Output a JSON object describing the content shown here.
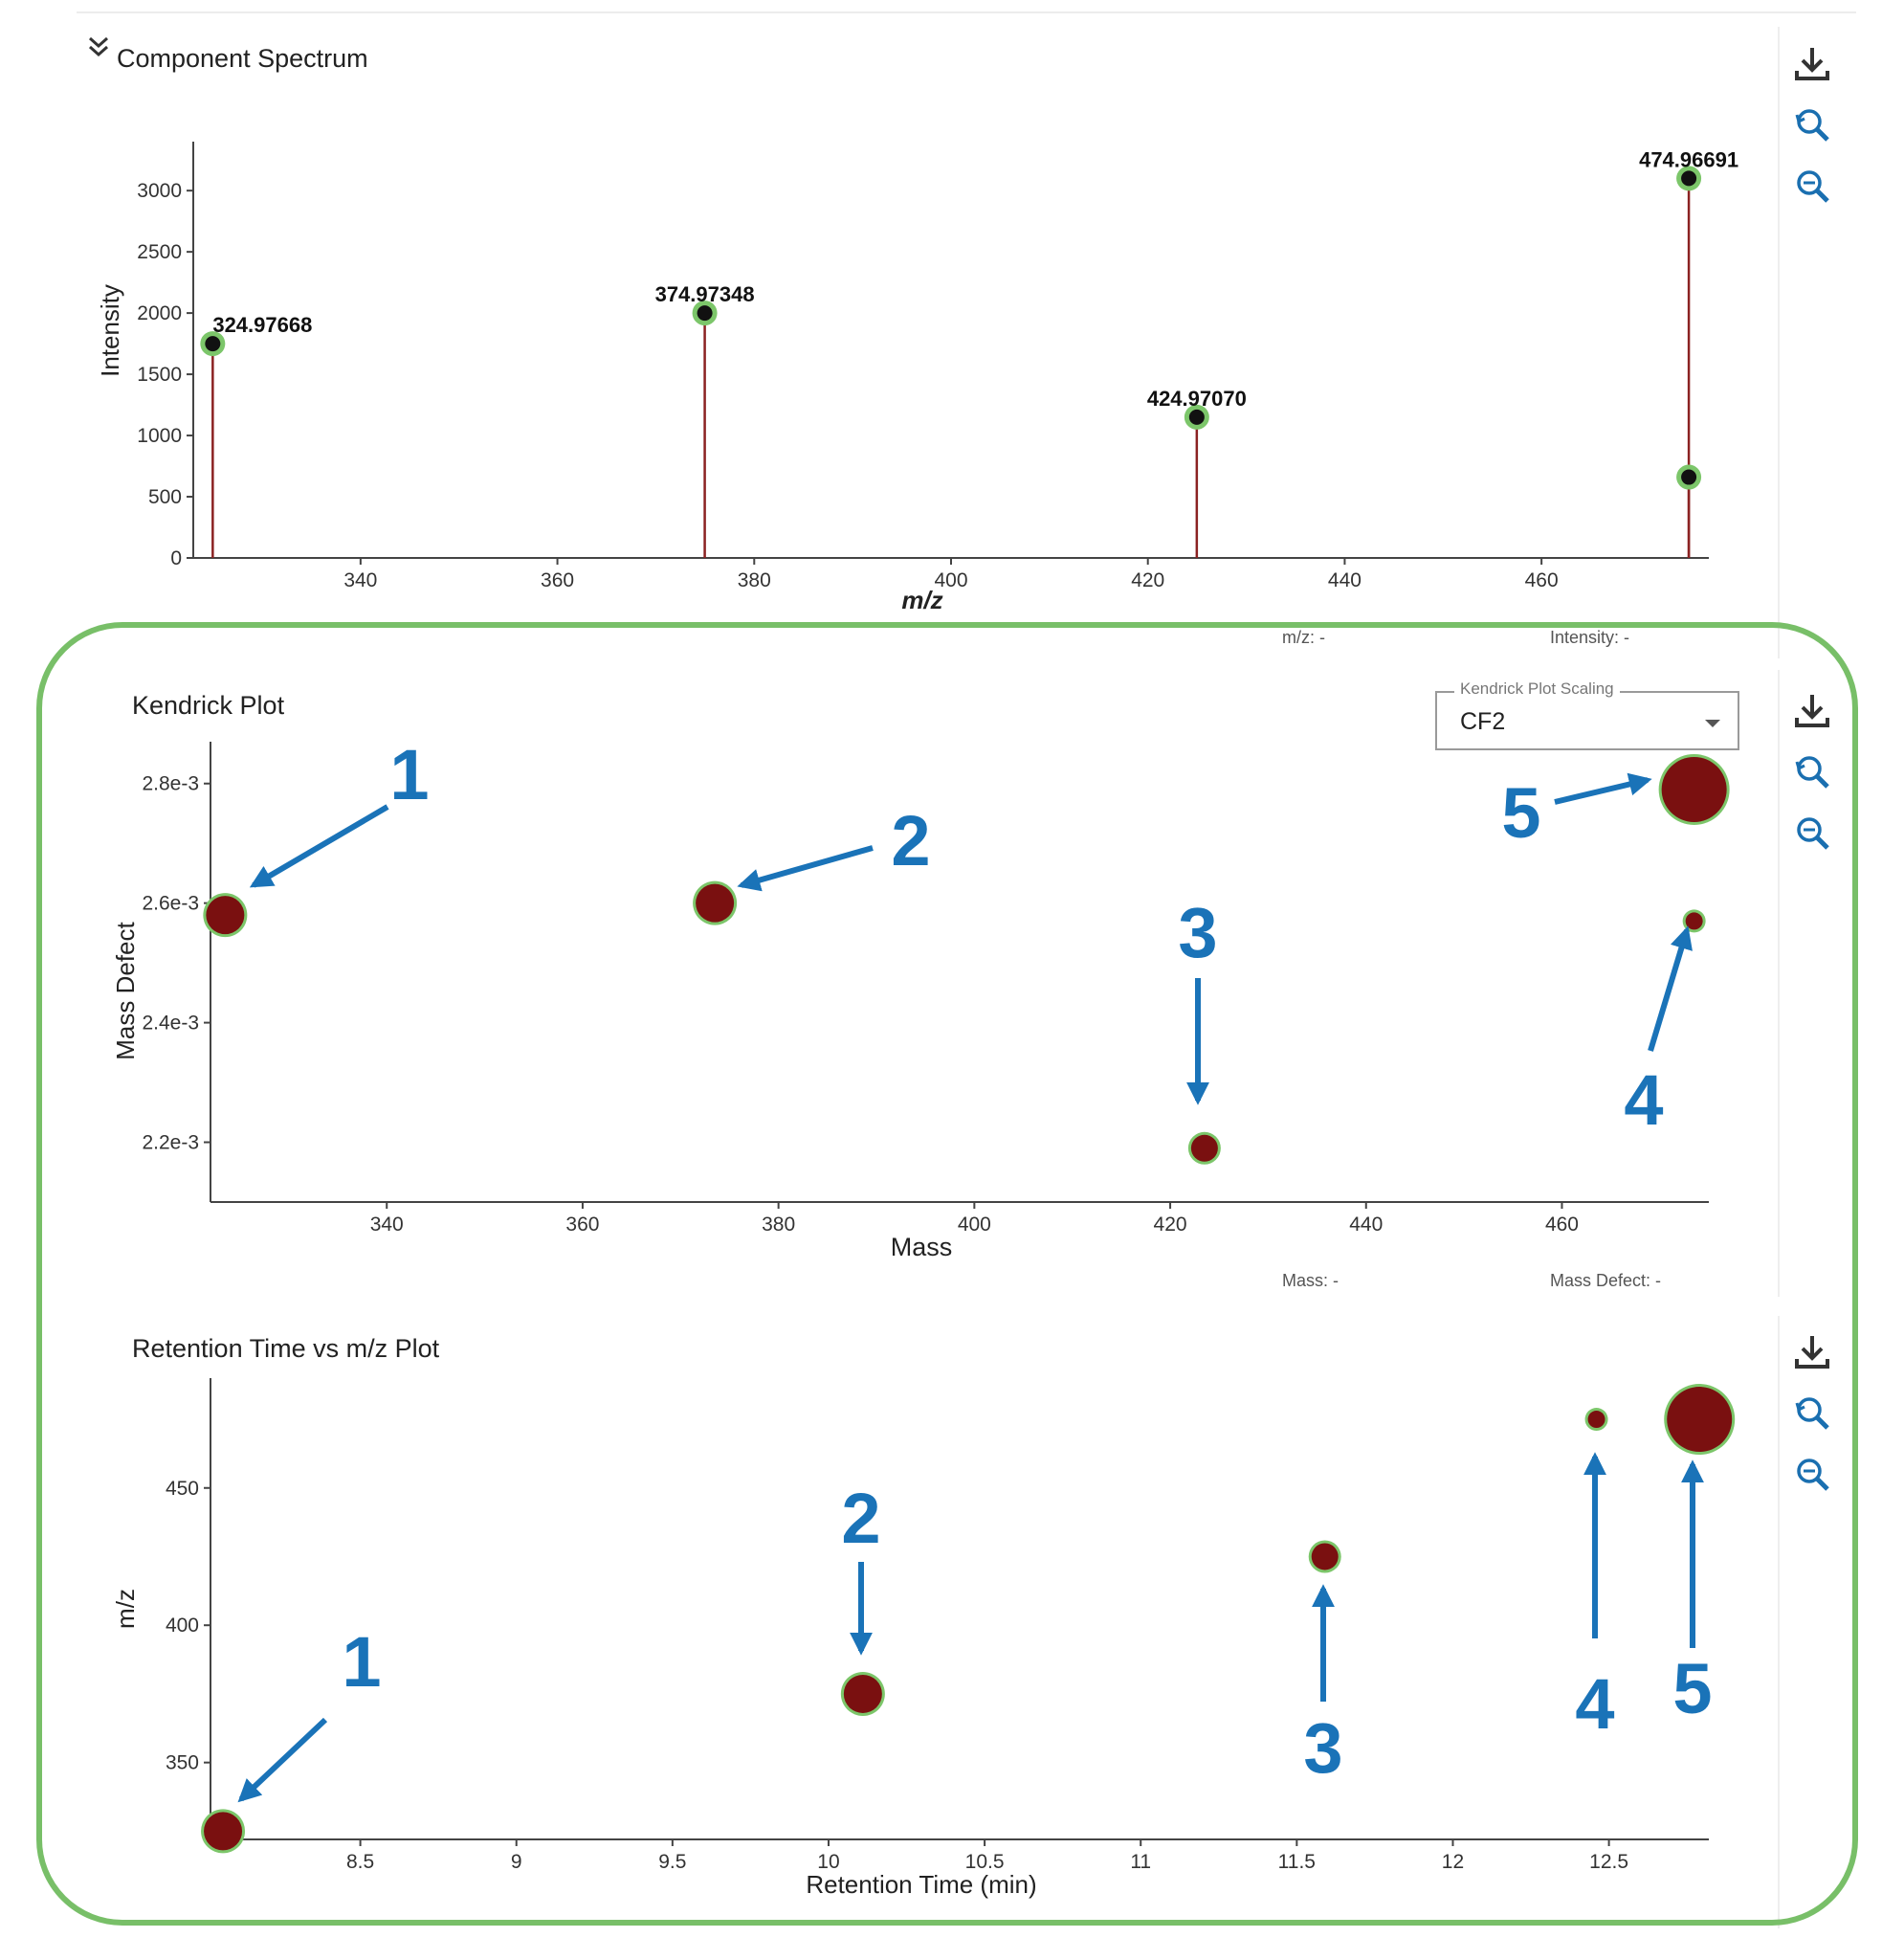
{
  "colors": {
    "stem": "#8b2222",
    "marker_fill": "#7a1010",
    "marker_ring": "#7cc66a",
    "peak_dot": "#111111",
    "arrow": "#1a73b8",
    "highlight": "#78bf68"
  },
  "toolbar_icons": [
    "download-icon",
    "reset-zoom-icon",
    "zoom-icon"
  ],
  "component_spectrum": {
    "title": "Component Spectrum",
    "collapse_icon": "chevron-double-down-icon",
    "readout_mz": "m/z: -",
    "readout_intensity": "Intensity: -",
    "chart_data": {
      "type": "bar",
      "xlabel": "m/z",
      "ylabel": "Intensity",
      "xlim": [
        323,
        477
      ],
      "ylim": [
        0,
        3400
      ],
      "xticks": [
        340,
        360,
        380,
        400,
        420,
        440,
        460
      ],
      "yticks": [
        0,
        500,
        1000,
        1500,
        2000,
        2500,
        3000
      ],
      "peaks": [
        {
          "x": 324.97668,
          "y": 1750,
          "label": "324.97668"
        },
        {
          "x": 374.97348,
          "y": 2000,
          "label": "374.97348"
        },
        {
          "x": 424.9707,
          "y": 1150,
          "label": "424.97070"
        },
        {
          "x": 474.96691,
          "y": 3100,
          "label": "474.96691"
        },
        {
          "x": 474.96691,
          "y": 660,
          "label": ""
        }
      ]
    }
  },
  "kendrick_plot": {
    "title": "Kendrick Plot",
    "scaling_label": "Kendrick Plot Scaling",
    "scaling_value": "CF2",
    "readout_mass": "Mass: -",
    "readout_defect": "Mass Defect: -",
    "chart_data": {
      "type": "scatter",
      "xlabel": "Mass",
      "ylabel": "Mass Defect",
      "xlim": [
        322,
        475
      ],
      "ylim": [
        0.0021,
        0.00287
      ],
      "xticks": [
        340,
        360,
        380,
        400,
        420,
        440,
        460
      ],
      "yticks": [
        0.0022,
        0.0024,
        0.0026,
        0.0028
      ],
      "ytick_labels": [
        "2.2e-3",
        "2.4e-3",
        "2.6e-3",
        "2.8e-3"
      ],
      "points": [
        {
          "x": 323.5,
          "y": 0.00258,
          "size": "medium",
          "label": "1"
        },
        {
          "x": 373.5,
          "y": 0.0026,
          "size": "medium",
          "label": "2"
        },
        {
          "x": 423.5,
          "y": 0.00219,
          "size": "small",
          "label": "3"
        },
        {
          "x": 473.5,
          "y": 0.00257,
          "size": "tiny",
          "label": "4"
        },
        {
          "x": 473.5,
          "y": 0.00279,
          "size": "large",
          "label": "5"
        }
      ]
    }
  },
  "retention_plot": {
    "title": "Retention Time vs m/z Plot",
    "chart_data": {
      "type": "scatter",
      "xlabel": "Retention Time (min)",
      "ylabel": "m/z",
      "xlim": [
        8.02,
        12.82
      ],
      "ylim": [
        322,
        490
      ],
      "xticks": [
        8.5,
        9,
        9.5,
        10,
        10.5,
        11,
        11.5,
        12,
        12.5
      ],
      "yticks": [
        350,
        400,
        450
      ],
      "points": [
        {
          "x": 8.06,
          "y": 325,
          "size": "medium",
          "label": "1"
        },
        {
          "x": 10.11,
          "y": 375,
          "size": "medium",
          "label": "2"
        },
        {
          "x": 11.59,
          "y": 425,
          "size": "small",
          "label": "3"
        },
        {
          "x": 12.46,
          "y": 475,
          "size": "tiny",
          "label": "4"
        },
        {
          "x": 12.79,
          "y": 475,
          "size": "large",
          "label": "5"
        }
      ]
    }
  }
}
